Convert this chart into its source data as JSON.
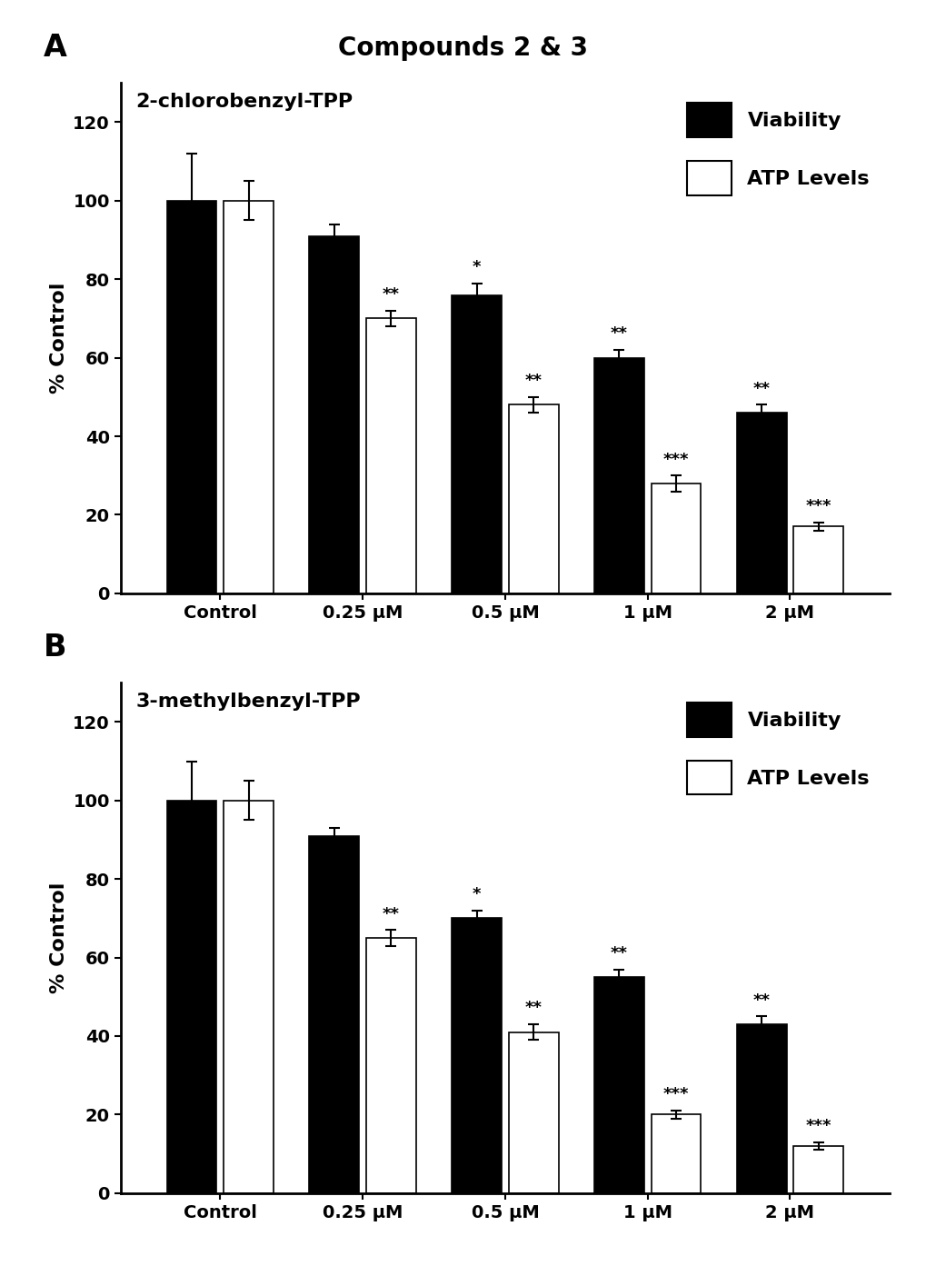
{
  "title": "Compounds 2 & 3",
  "panel_A_title": "2-chlorobenzyl-TPP",
  "panel_B_title": "3-methylbenzyl-TPP",
  "categories": [
    "Control",
    "0.25 μM",
    "0.5 μM",
    "1 μM",
    "2 μM"
  ],
  "panel_A": {
    "viability_means": [
      100,
      91,
      76,
      60,
      46
    ],
    "viability_sems": [
      12,
      3,
      3,
      2,
      2
    ],
    "atp_means": [
      100,
      70,
      48,
      28,
      17
    ],
    "atp_sems": [
      5,
      2,
      2,
      2,
      1
    ],
    "viability_sig": [
      "",
      "",
      "*",
      "**",
      "**"
    ],
    "atp_sig": [
      "",
      "**",
      "**",
      "***",
      "***"
    ]
  },
  "panel_B": {
    "viability_means": [
      100,
      91,
      70,
      55,
      43
    ],
    "viability_sems": [
      10,
      2,
      2,
      2,
      2
    ],
    "atp_means": [
      100,
      65,
      41,
      20,
      12
    ],
    "atp_sems": [
      5,
      2,
      2,
      1,
      1
    ],
    "viability_sig": [
      "",
      "",
      "*",
      "**",
      "**"
    ],
    "atp_sig": [
      "",
      "**",
      "**",
      "***",
      "***"
    ]
  },
  "ylabel": "% Control",
  "ylim": [
    0,
    130
  ],
  "yticks": [
    0,
    20,
    40,
    60,
    80,
    100,
    120
  ],
  "bar_width": 0.35,
  "bar_gap": 0.05,
  "black_color": "#000000",
  "white_color": "#ffffff",
  "legend_viability": "Viability",
  "legend_atp": "ATP Levels",
  "title_fontsize": 20,
  "label_fontsize": 16,
  "tick_fontsize": 14,
  "sig_fontsize": 13,
  "legend_fontsize": 16,
  "panel_label_fontsize": 24
}
